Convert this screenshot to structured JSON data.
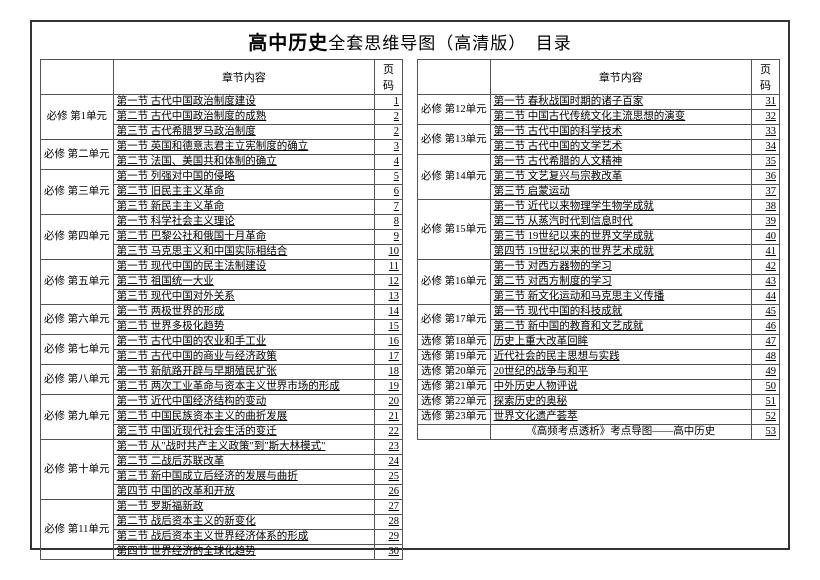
{
  "title_main": "高中历史",
  "title_sub": "全套思维导图（高清版）　目录",
  "header": {
    "unit": "",
    "content": "章节内容",
    "page": "页码"
  },
  "left": [
    {
      "unit": "必修 第1单元",
      "rows": [
        {
          "t": "第一节 古代中国政治制度建设",
          "p": 1
        },
        {
          "t": "第二节 古代中国政治制度的成熟",
          "p": 2
        },
        {
          "t": "第三节 古代希腊罗马政治制度",
          "p": 2
        }
      ]
    },
    {
      "unit": "必修 第二单元",
      "rows": [
        {
          "t": "第一节 英国和德意志君主立宪制度的确立",
          "p": 3
        },
        {
          "t": "第二节 法国、美国共和体制的确立",
          "p": 4
        }
      ]
    },
    {
      "unit": "必修 第三单元",
      "rows": [
        {
          "t": "第一节 列强对中国的侵略",
          "p": 5
        },
        {
          "t": "第二节 旧民主主义革命",
          "p": 6
        },
        {
          "t": "第三节 新民主主义革命",
          "p": 7
        }
      ]
    },
    {
      "unit": "必修 第四单元",
      "rows": [
        {
          "t": "第一节 科学社会主义理论",
          "p": 8
        },
        {
          "t": "第二节 巴黎公社和俄国十月革命",
          "p": 9
        },
        {
          "t": "第三节 马克思主义和中国实际相结合",
          "p": 10
        }
      ]
    },
    {
      "unit": "必修 第五单元",
      "rows": [
        {
          "t": "第一节 现代中国的民主法制建设",
          "p": 11
        },
        {
          "t": "第二节 祖国统一大业",
          "p": 12
        },
        {
          "t": "第三节 现代中国对外关系",
          "p": 13
        }
      ]
    },
    {
      "unit": "必修 第六单元",
      "rows": [
        {
          "t": "第一节 两极世界的形成",
          "p": 14
        },
        {
          "t": "第二节 世界多极化趋势",
          "p": 15
        }
      ]
    },
    {
      "unit": "必修 第七单元",
      "rows": [
        {
          "t": "第一节 古代中国的农业和手工业",
          "p": 16
        },
        {
          "t": "第二节 古代中国的商业与经济政策",
          "p": 17
        }
      ]
    },
    {
      "unit": "必修 第八单元",
      "rows": [
        {
          "t": "第一节 新航路开辟与早期殖民扩张",
          "p": 18
        },
        {
          "t": "第二节 两次工业革命与资本主义世界市场的形成",
          "p": 19
        }
      ]
    },
    {
      "unit": "必修 第九单元",
      "rows": [
        {
          "t": "第一节 近代中国经济结构的变动",
          "p": 20
        },
        {
          "t": "第二节 中国民族资本主义的曲折发展",
          "p": 21
        },
        {
          "t": "第三节 中国近现代社会生活的变迁",
          "p": 22
        }
      ]
    },
    {
      "unit": "必修 第十单元",
      "rows": [
        {
          "t": "第一节 从\"战时共产主义政策\"到\"斯大林模式\"",
          "p": 23
        },
        {
          "t": "第二节 二战后苏联改革",
          "p": 24
        },
        {
          "t": "第三节 新中国成立后经济的发展与曲折",
          "p": 25
        },
        {
          "t": "第四节 中国的改革和开放",
          "p": 26
        }
      ]
    },
    {
      "unit": "必修 第11单元",
      "rows": [
        {
          "t": "第一节 罗斯福新政",
          "p": 27
        },
        {
          "t": "第二节 战后资本主义的新变化",
          "p": 28
        },
        {
          "t": "第三节 战后资本主义世界经济体系的形成",
          "p": 29
        },
        {
          "t": "第四节 世界经济的全球化趋势",
          "p": 30
        }
      ]
    }
  ],
  "right": [
    {
      "unit": "必修 第12单元",
      "rows": [
        {
          "t": "第一节 春秋战国时期的诸子百家",
          "p": 31
        },
        {
          "t": "第二节 中国古代传统文化主流思想的演变",
          "p": 32
        }
      ]
    },
    {
      "unit": "必修 第13单元",
      "rows": [
        {
          "t": "第一节 古代中国的科学技术",
          "p": 33
        },
        {
          "t": "第二节 古代中国的文学艺术",
          "p": 34
        }
      ]
    },
    {
      "unit": "必修 第14单元",
      "rows": [
        {
          "t": "第一节 古代希腊的人文精神",
          "p": 35
        },
        {
          "t": "第二节 文艺复兴与宗教改革",
          "p": 36
        },
        {
          "t": "第三节 启蒙运动",
          "p": 37
        }
      ]
    },
    {
      "unit": "必修 第15单元",
      "rows": [
        {
          "t": "第一节 近代以来物理学生物学成就",
          "p": 38
        },
        {
          "t": "第二节 从蒸汽时代到信息时代",
          "p": 39
        },
        {
          "t": "第三节 19世纪以来的世界文学成就",
          "p": 40
        },
        {
          "t": "第四节 19世纪以来的世界艺术成就",
          "p": 41
        }
      ]
    },
    {
      "unit": "必修 第16单元",
      "rows": [
        {
          "t": "第一节 对西方器物的学习",
          "p": 42
        },
        {
          "t": "第二节 对西方制度的学习",
          "p": 43
        },
        {
          "t": "第三节 新文化运动和马克思主义传播",
          "p": 44
        }
      ]
    },
    {
      "unit": "必修 第17单元",
      "rows": [
        {
          "t": "第一节 现代中国的科技成就",
          "p": 45
        },
        {
          "t": "第二节 新中国的教育和文艺成就",
          "p": 46
        }
      ]
    }
  ],
  "right_simple": [
    {
      "u": "选修 第18单元",
      "t": "历史上重大改革回眸",
      "p": 47
    },
    {
      "u": "选修 第19单元",
      "t": "近代社会的民主思想与实践",
      "p": 48
    },
    {
      "u": "选修 第20单元",
      "t": "20世纪的战争与和平",
      "p": 49
    },
    {
      "u": "选修 第21单元",
      "t": "中外历史人物评说",
      "p": 50
    },
    {
      "u": "选修 第22单元",
      "t": "探索历史的奥秘",
      "p": 51
    },
    {
      "u": "选修 第23单元",
      "t": "世界文化遗产荟萃",
      "p": 52
    },
    {
      "u": "",
      "t": "《高频考点透析》考点导图——高中历史",
      "p": 53
    }
  ]
}
